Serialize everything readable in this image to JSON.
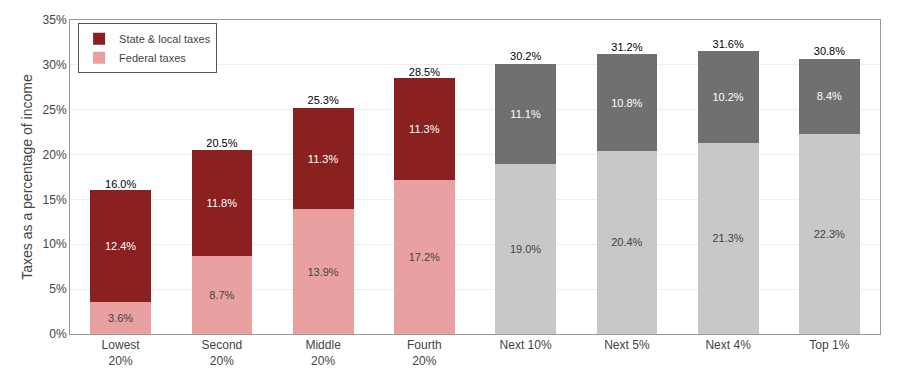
{
  "chart_data": {
    "type": "bar",
    "stacked": true,
    "categories": [
      "Lowest\n20%",
      "Second\n20%",
      "Middle\n20%",
      "Fourth\n20%",
      "Next 10%",
      "Next 5%",
      "Next 4%",
      "Top 1%"
    ],
    "series": [
      {
        "name": "Federal taxes",
        "colors": [
          "#E8A0A0",
          "#E8A0A0",
          "#E8A0A0",
          "#E8A0A0",
          "#C8C8C8",
          "#C8C8C8",
          "#C8C8C8",
          "#C8C8C8"
        ],
        "values": [
          3.6,
          8.7,
          13.9,
          17.2,
          19.0,
          20.4,
          21.3,
          22.3
        ],
        "value_labels": [
          "3.6%",
          "8.7%",
          "13.9%",
          "17.2%",
          "19.0%",
          "20.4%",
          "21.3%",
          "22.3%"
        ]
      },
      {
        "name": "State & local taxes",
        "colors": [
          "#8B2020",
          "#8B2020",
          "#8B2020",
          "#8B2020",
          "#707070",
          "#707070",
          "#707070",
          "#707070"
        ],
        "values": [
          12.4,
          11.8,
          11.3,
          11.3,
          11.1,
          10.8,
          10.2,
          8.4
        ],
        "value_labels": [
          "12.4%",
          "11.8%",
          "11.3%",
          "11.3%",
          "11.1%",
          "10.8%",
          "10.2%",
          "8.4%"
        ]
      }
    ],
    "totals": [
      16.0,
      20.5,
      25.3,
      28.5,
      30.2,
      31.2,
      31.6,
      30.8
    ],
    "total_labels": [
      "16.0%",
      "20.5%",
      "25.3%",
      "28.5%",
      "30.2%",
      "31.2%",
      "31.6%",
      "30.8%"
    ],
    "data_labels": true,
    "ylabel": "Taxes as a percentage of income",
    "ylim": [
      0,
      35
    ],
    "yticks": [
      {
        "value": 0,
        "label": "0%"
      },
      {
        "value": 5,
        "label": "5%"
      },
      {
        "value": 10,
        "label": "10%"
      },
      {
        "value": 15,
        "label": "15%"
      },
      {
        "value": 20,
        "label": "20%"
      },
      {
        "value": 25,
        "label": "25%"
      },
      {
        "value": 30,
        "label": "30%"
      },
      {
        "value": 35,
        "label": "35%"
      }
    ],
    "grid": true,
    "legend": "upper left"
  }
}
